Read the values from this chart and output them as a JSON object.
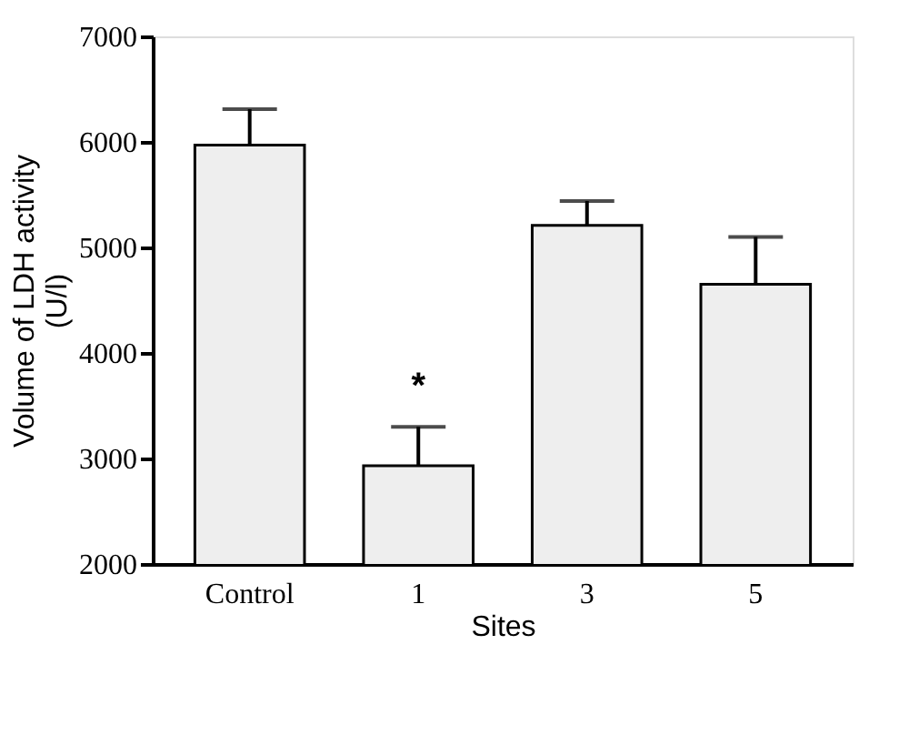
{
  "chart_data": {
    "type": "bar",
    "xlabel": "Sites",
    "ylabel": "Volume of LDH activity\n(U/l)",
    "categories": [
      "Control",
      "1",
      "3",
      "5"
    ],
    "values": [
      5970,
      2930,
      5210,
      4650
    ],
    "errors": [
      [
        5970,
        6310
      ],
      [
        2930,
        3300
      ],
      [
        5210,
        5440
      ],
      [
        4650,
        5100
      ]
    ],
    "color": "#eeeeee",
    "ylim": [
      2000,
      7000
    ],
    "yticks": [
      2000,
      3000,
      4000,
      5000,
      6000,
      7000
    ],
    "grid": false,
    "annotations": [
      {
        "text": "*",
        "x": "1",
        "y": 3300
      }
    ]
  }
}
